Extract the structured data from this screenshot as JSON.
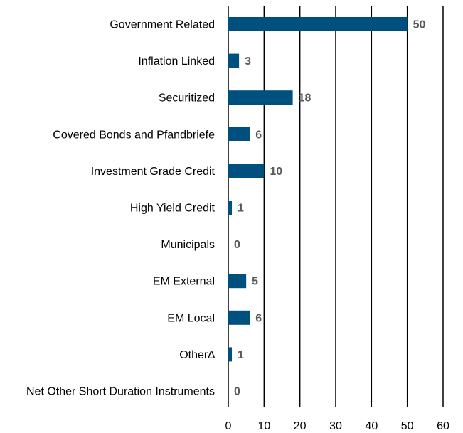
{
  "chart_data": {
    "type": "bar",
    "orientation": "horizontal",
    "categories": [
      "Government Related",
      "Inflation Linked",
      "Securitized",
      "Covered Bonds and Pfandbriefe",
      "Investment Grade Credit",
      "High Yield Credit",
      "Municipals",
      "EM External",
      "EM Local",
      "Other∆",
      "Net Other Short Duration Instruments"
    ],
    "values": [
      50,
      3,
      18,
      6,
      10,
      1,
      0,
      5,
      6,
      1,
      0
    ],
    "value_labels": [
      "50",
      "3",
      "18",
      "6",
      "10",
      "1",
      "0",
      "5",
      "6",
      "1",
      "0"
    ],
    "xlim": [
      0,
      60
    ],
    "xticks": [
      0,
      10,
      20,
      30,
      40,
      50,
      60
    ],
    "xtick_labels": [
      "0",
      "10",
      "20",
      "30",
      "40",
      "50",
      "60"
    ],
    "grid": "vertical",
    "colors": {
      "bar": "#00507f",
      "value_label": "#595959",
      "grid": "#000000"
    }
  }
}
